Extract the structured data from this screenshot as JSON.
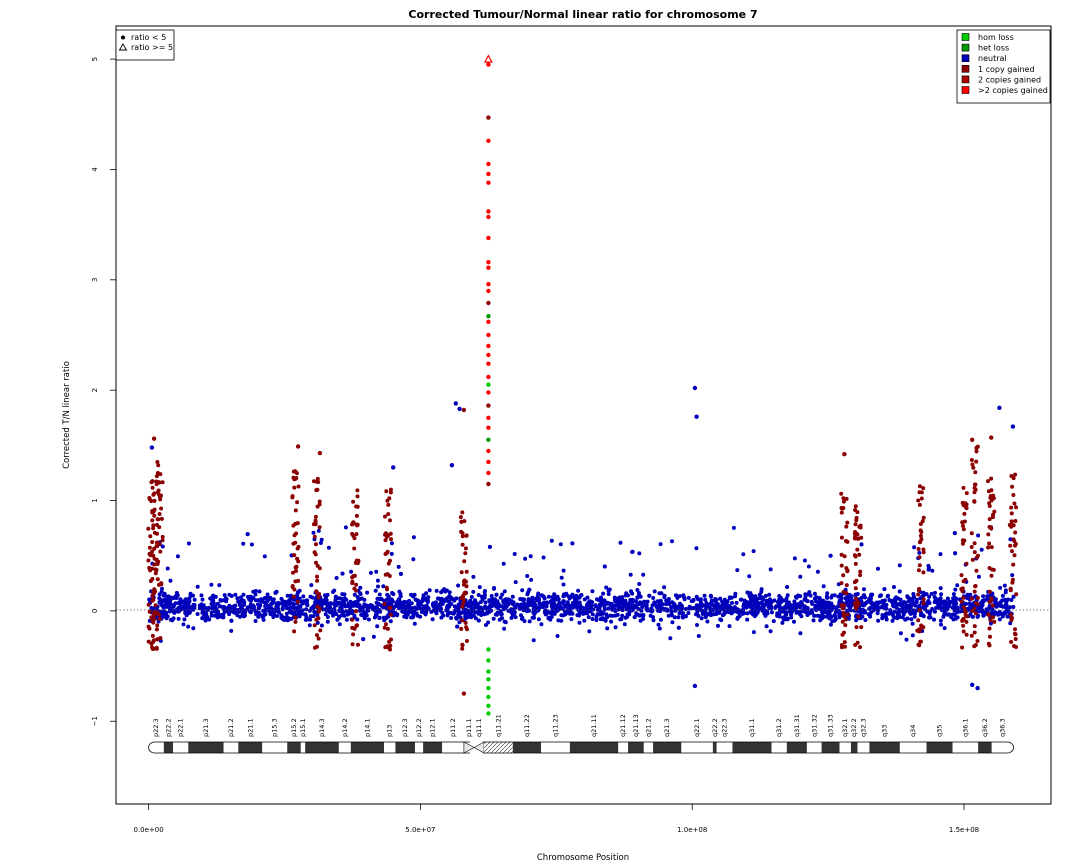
{
  "chart_data": {
    "type": "scatter",
    "title": "Corrected Tumour/Normal linear ratio for chromosome  7",
    "xlabel": "Chromosome Position",
    "ylabel": "Corrected T/N linear ratio",
    "xlim": [
      -6000000,
      166000000
    ],
    "ylim": [
      -1.75,
      5.3
    ],
    "x_ticks": [
      0,
      50000000,
      100000000,
      150000000
    ],
    "x_tick_labels": [
      "0.0e+00",
      "5.0e+07",
      "1.0e+08",
      "1.5e+08"
    ],
    "y_ticks": [
      -1,
      0,
      1,
      2,
      3,
      4,
      5
    ],
    "y_tick_labels": [
      "−1",
      "0",
      "1",
      "2",
      "3",
      "4",
      "5"
    ],
    "reference_line_y": 0,
    "chromosome_length": 159100000,
    "centromere": 61500000,
    "colors": {
      "hom_loss": "#00cc00",
      "het_loss": "#009900",
      "neutral": "#0000bb",
      "gain1": "#8b0000",
      "gain2": "#aa0000",
      "gain_more": "#ff0000"
    },
    "shape_legend": {
      "position": "top-left",
      "items": [
        {
          "symbol": "circle",
          "label": "ratio < 5"
        },
        {
          "symbol": "triangle",
          "label": "ratio >= 5"
        }
      ]
    },
    "color_legend": {
      "position": "top-right",
      "items": [
        {
          "label": "hom loss",
          "color": "#00cc00"
        },
        {
          "label": "het loss",
          "color": "#009900"
        },
        {
          "label": "neutral",
          "color": "#0000bb"
        },
        {
          "label": "1 copy gained",
          "color": "#8b0000"
        },
        {
          "label": "2 copies gained",
          "color": "#aa0000"
        },
        {
          "label": ">2 copies gained",
          "color": "#ff0000"
        }
      ]
    },
    "neutral_band": {
      "x_range": [
        0,
        159100000
      ],
      "y_range": [
        -0.5,
        0.75
      ],
      "approx_points": 3000
    },
    "highlighted_points": [
      {
        "x": 62500000,
        "y": 5.0,
        "state": "gain_more",
        "shape": "triangle"
      },
      {
        "x": 62500000,
        "y": 4.95,
        "state": "gain_more"
      },
      {
        "x": 62500000,
        "y": 4.47,
        "state": "gain1"
      },
      {
        "x": 62500000,
        "y": 4.26,
        "state": "gain_more"
      },
      {
        "x": 62500000,
        "y": 4.05,
        "state": "gain_more"
      },
      {
        "x": 62500000,
        "y": 3.96,
        "state": "gain_more"
      },
      {
        "x": 62500000,
        "y": 3.88,
        "state": "gain_more"
      },
      {
        "x": 62500000,
        "y": 3.62,
        "state": "gain_more"
      },
      {
        "x": 62500000,
        "y": 3.57,
        "state": "gain_more"
      },
      {
        "x": 62500000,
        "y": 3.38,
        "state": "gain_more"
      },
      {
        "x": 62500000,
        "y": 3.16,
        "state": "gain_more"
      },
      {
        "x": 62500000,
        "y": 3.11,
        "state": "gain_more"
      },
      {
        "x": 62500000,
        "y": 2.96,
        "state": "gain_more"
      },
      {
        "x": 62500000,
        "y": 2.9,
        "state": "gain_more"
      },
      {
        "x": 62500000,
        "y": 2.79,
        "state": "gain1"
      },
      {
        "x": 62500000,
        "y": 2.67,
        "state": "het_loss"
      },
      {
        "x": 62500000,
        "y": 2.62,
        "state": "gain_more"
      },
      {
        "x": 62500000,
        "y": 2.5,
        "state": "gain_more"
      },
      {
        "x": 62500000,
        "y": 2.4,
        "state": "gain_more"
      },
      {
        "x": 62500000,
        "y": 2.32,
        "state": "gain_more"
      },
      {
        "x": 62500000,
        "y": 2.24,
        "state": "gain_more"
      },
      {
        "x": 62500000,
        "y": 2.12,
        "state": "gain_more"
      },
      {
        "x": 62500000,
        "y": 2.05,
        "state": "hom_loss"
      },
      {
        "x": 62500000,
        "y": 1.98,
        "state": "gain_more"
      },
      {
        "x": 62500000,
        "y": 1.86,
        "state": "gain1"
      },
      {
        "x": 62500000,
        "y": 1.75,
        "state": "gain_more"
      },
      {
        "x": 62500000,
        "y": 1.66,
        "state": "gain_more"
      },
      {
        "x": 62500000,
        "y": 1.55,
        "state": "het_loss"
      },
      {
        "x": 62500000,
        "y": 1.45,
        "state": "gain_more"
      },
      {
        "x": 62500000,
        "y": 1.35,
        "state": "gain_more"
      },
      {
        "x": 62500000,
        "y": 1.25,
        "state": "gain_more"
      },
      {
        "x": 62500000,
        "y": 1.15,
        "state": "gain1"
      },
      {
        "x": 62500000,
        "y": -0.35,
        "state": "hom_loss"
      },
      {
        "x": 62500000,
        "y": -0.45,
        "state": "hom_loss"
      },
      {
        "x": 62500000,
        "y": -0.55,
        "state": "hom_loss"
      },
      {
        "x": 62500000,
        "y": -0.62,
        "state": "hom_loss"
      },
      {
        "x": 62500000,
        "y": -0.7,
        "state": "hom_loss"
      },
      {
        "x": 62500000,
        "y": -0.78,
        "state": "hom_loss"
      },
      {
        "x": 62500000,
        "y": -0.86,
        "state": "hom_loss"
      },
      {
        "x": 62500000,
        "y": -0.93,
        "state": "hom_loss"
      },
      {
        "x": 56500000,
        "y": 1.88,
        "state": "neutral"
      },
      {
        "x": 57200000,
        "y": 1.83,
        "state": "neutral"
      },
      {
        "x": 58000000,
        "y": 1.82,
        "state": "gain1"
      },
      {
        "x": 100500000,
        "y": 2.02,
        "state": "neutral"
      },
      {
        "x": 100800000,
        "y": 1.76,
        "state": "neutral"
      },
      {
        "x": 156500000,
        "y": 1.84,
        "state": "neutral"
      },
      {
        "x": 159000000,
        "y": 1.67,
        "state": "neutral"
      },
      {
        "x": 1000000,
        "y": 1.56,
        "state": "gain1"
      },
      {
        "x": 600000,
        "y": 1.48,
        "state": "neutral"
      },
      {
        "x": 27500000,
        "y": 1.49,
        "state": "gain1"
      },
      {
        "x": 31500000,
        "y": 1.43,
        "state": "gain1"
      },
      {
        "x": 128000000,
        "y": 1.42,
        "state": "gain1"
      },
      {
        "x": 151500000,
        "y": 1.55,
        "state": "gain1"
      },
      {
        "x": 155000000,
        "y": 1.57,
        "state": "gain1"
      },
      {
        "x": 45000000,
        "y": 1.3,
        "state": "neutral"
      },
      {
        "x": 55800000,
        "y": 1.32,
        "state": "neutral"
      },
      {
        "x": 58000000,
        "y": -0.75,
        "state": "gain1"
      },
      {
        "x": 100500000,
        "y": -0.68,
        "state": "neutral"
      },
      {
        "x": 151500000,
        "y": -0.67,
        "state": "neutral"
      },
      {
        "x": 152500000,
        "y": -0.7,
        "state": "neutral"
      }
    ],
    "gain_spikes": [
      {
        "x": 500000,
        "ymax": 1.2
      },
      {
        "x": 1200000,
        "ymax": 1.3
      },
      {
        "x": 2000000,
        "ymax": 1.35
      },
      {
        "x": 27000000,
        "ymax": 1.3
      },
      {
        "x": 31000000,
        "ymax": 1.2
      },
      {
        "x": 38000000,
        "ymax": 1.13
      },
      {
        "x": 44000000,
        "ymax": 1.1
      },
      {
        "x": 58000000,
        "ymax": 0.9
      },
      {
        "x": 128000000,
        "ymax": 1.1
      },
      {
        "x": 130500000,
        "ymax": 1.05
      },
      {
        "x": 142000000,
        "ymax": 1.15
      },
      {
        "x": 150000000,
        "ymax": 1.15
      },
      {
        "x": 152000000,
        "ymax": 1.5
      },
      {
        "x": 155000000,
        "ymax": 1.2
      },
      {
        "x": 159000000,
        "ymax": 1.3
      }
    ],
    "ideogram": {
      "bands": [
        {
          "name": "p22.3",
          "start": 0,
          "end": 2800000,
          "stain": "gneg"
        },
        {
          "name": "p22.2",
          "start": 2800000,
          "end": 4500000,
          "stain": "gpos"
        },
        {
          "name": "p22.1",
          "start": 4500000,
          "end": 7300000,
          "stain": "gneg"
        },
        {
          "name": "p21.3",
          "start": 7300000,
          "end": 13800000,
          "stain": "gpos"
        },
        {
          "name": "p21.2",
          "start": 13800000,
          "end": 16500000,
          "stain": "gneg"
        },
        {
          "name": "p21.1",
          "start": 16500000,
          "end": 20900000,
          "stain": "gpos"
        },
        {
          "name": "p15.3",
          "start": 20900000,
          "end": 25500000,
          "stain": "gneg"
        },
        {
          "name": "p15.2",
          "start": 25500000,
          "end": 28000000,
          "stain": "gpos"
        },
        {
          "name": "p15.1",
          "start": 28000000,
          "end": 28800000,
          "stain": "gneg"
        },
        {
          "name": "p14.3",
          "start": 28800000,
          "end": 35000000,
          "stain": "gpos"
        },
        {
          "name": "p14.2",
          "start": 35000000,
          "end": 37200000,
          "stain": "gneg"
        },
        {
          "name": "p14.1",
          "start": 37200000,
          "end": 43300000,
          "stain": "gpos"
        },
        {
          "name": "p13",
          "start": 43300000,
          "end": 45400000,
          "stain": "gneg"
        },
        {
          "name": "p12.3",
          "start": 45400000,
          "end": 49000000,
          "stain": "gpos"
        },
        {
          "name": "p12.2",
          "start": 49000000,
          "end": 50500000,
          "stain": "gneg"
        },
        {
          "name": "p12.1",
          "start": 50500000,
          "end": 54000000,
          "stain": "gpos"
        },
        {
          "name": "p11.2",
          "start": 54000000,
          "end": 58000000,
          "stain": "gneg"
        },
        {
          "name": "p11.1",
          "start": 58000000,
          "end": 59900000,
          "stain": "acen"
        },
        {
          "name": "q11.1",
          "start": 59900000,
          "end": 61700000,
          "stain": "acen"
        },
        {
          "name": "q11.21",
          "start": 61700000,
          "end": 67000000,
          "stain": "gvar"
        },
        {
          "name": "q11.22",
          "start": 67000000,
          "end": 72200000,
          "stain": "gpos"
        },
        {
          "name": "q11.23",
          "start": 72200000,
          "end": 77500000,
          "stain": "gneg"
        },
        {
          "name": "q21.11",
          "start": 77500000,
          "end": 86400000,
          "stain": "gpos"
        },
        {
          "name": "q21.12",
          "start": 86400000,
          "end": 88200000,
          "stain": "gneg"
        },
        {
          "name": "q21.13",
          "start": 88200000,
          "end": 91100000,
          "stain": "gpos"
        },
        {
          "name": "q21.2",
          "start": 91100000,
          "end": 92800000,
          "stain": "gneg"
        },
        {
          "name": "q21.3",
          "start": 92800000,
          "end": 98000000,
          "stain": "gpos"
        },
        {
          "name": "q22.1",
          "start": 98000000,
          "end": 103800000,
          "stain": "gneg"
        },
        {
          "name": "q22.2",
          "start": 103800000,
          "end": 104500000,
          "stain": "gpos"
        },
        {
          "name": "q22.3",
          "start": 104500000,
          "end": 107400000,
          "stain": "gneg"
        },
        {
          "name": "q31.1",
          "start": 107400000,
          "end": 114600000,
          "stain": "gpos"
        },
        {
          "name": "q31.2",
          "start": 114600000,
          "end": 117400000,
          "stain": "gneg"
        },
        {
          "name": "q31.31",
          "start": 117400000,
          "end": 121100000,
          "stain": "gpos"
        },
        {
          "name": "q31.32",
          "start": 121100000,
          "end": 123800000,
          "stain": "gneg"
        },
        {
          "name": "q31.33",
          "start": 123800000,
          "end": 127100000,
          "stain": "gpos"
        },
        {
          "name": "q32.1",
          "start": 127100000,
          "end": 129200000,
          "stain": "gneg"
        },
        {
          "name": "q32.2",
          "start": 129200000,
          "end": 130400000,
          "stain": "gpos"
        },
        {
          "name": "q32.3",
          "start": 130400000,
          "end": 132600000,
          "stain": "gneg"
        },
        {
          "name": "q33",
          "start": 132600000,
          "end": 138200000,
          "stain": "gpos"
        },
        {
          "name": "q34",
          "start": 138200000,
          "end": 143100000,
          "stain": "gneg"
        },
        {
          "name": "q35",
          "start": 143100000,
          "end": 147900000,
          "stain": "gpos"
        },
        {
          "name": "q36.1",
          "start": 147900000,
          "end": 152600000,
          "stain": "gneg"
        },
        {
          "name": "q36.2",
          "start": 152600000,
          "end": 155100000,
          "stain": "gpos"
        },
        {
          "name": "q36.3",
          "start": 155100000,
          "end": 159100000,
          "stain": "gneg"
        }
      ]
    }
  }
}
